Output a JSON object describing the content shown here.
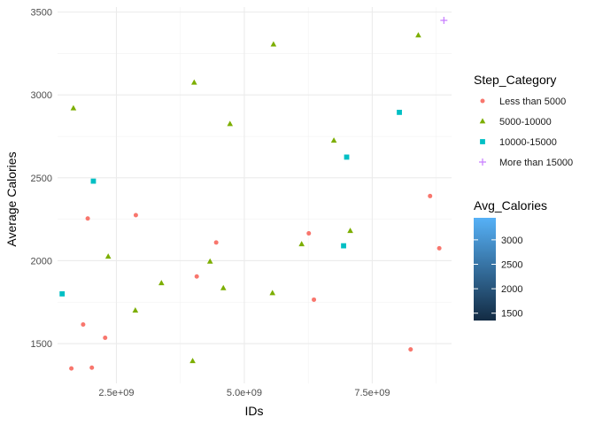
{
  "chart_data": {
    "type": "scatter",
    "xlabel": "IDs",
    "ylabel": "Average Calories",
    "xlim": [
      1350000000.0,
      9050000000.0
    ],
    "ylim": [
      1260,
      3530
    ],
    "x_ticks": [
      {
        "value": 2500000000.0,
        "label": "2.5e+09"
      },
      {
        "value": 5000000000.0,
        "label": "5.0e+09"
      },
      {
        "value": 7500000000.0,
        "label": "7.5e+09"
      }
    ],
    "y_ticks": [
      {
        "value": 1500,
        "label": "1500"
      },
      {
        "value": 2000,
        "label": "2000"
      },
      {
        "value": 2500,
        "label": "2500"
      },
      {
        "value": 3000,
        "label": "3000"
      },
      {
        "value": 3500,
        "label": "3500"
      }
    ],
    "grid": true,
    "legend_position": "right",
    "color_legend": {
      "title": "Step_Category",
      "entries": [
        {
          "label": "Less than 5000",
          "color": "#F8766D",
          "shape": "circle"
        },
        {
          "label": "5000-10000",
          "color": "#7CAE00",
          "shape": "triangle"
        },
        {
          "label": "10000-15000",
          "color": "#00BFC4",
          "shape": "square"
        },
        {
          "label": "More than 15000",
          "color": "#C77CFF",
          "shape": "plus"
        }
      ]
    },
    "gradient_legend": {
      "title": "Avg_Calories",
      "low_color": "#132B43",
      "high_color": "#56B1F7",
      "range": [
        1350,
        3450
      ],
      "breaks": [
        {
          "value": 1500,
          "label": "1500"
        },
        {
          "value": 2000,
          "label": "2000"
        },
        {
          "value": 2500,
          "label": "2500"
        },
        {
          "value": 3000,
          "label": "3000"
        }
      ]
    },
    "series": [
      {
        "name": "Less than 5000",
        "points": [
          {
            "x": 1620000000.0,
            "y": 1350
          },
          {
            "x": 2020000000.0,
            "y": 1355
          },
          {
            "x": 1850000000.0,
            "y": 1615
          },
          {
            "x": 2280000000.0,
            "y": 1535
          },
          {
            "x": 1940000000.0,
            "y": 2255
          },
          {
            "x": 2880000000.0,
            "y": 2275
          },
          {
            "x": 4070000000.0,
            "y": 1905
          },
          {
            "x": 4450000000.0,
            "y": 2110
          },
          {
            "x": 6260000000.0,
            "y": 2165
          },
          {
            "x": 6360000000.0,
            "y": 1765
          },
          {
            "x": 8250000000.0,
            "y": 1465
          },
          {
            "x": 8630000000.0,
            "y": 2390
          },
          {
            "x": 8810000000.0,
            "y": 2075
          }
        ]
      },
      {
        "name": "5000-10000",
        "points": [
          {
            "x": 1660000000.0,
            "y": 2920
          },
          {
            "x": 2340000000.0,
            "y": 2025
          },
          {
            "x": 2870000000.0,
            "y": 1700
          },
          {
            "x": 3380000000.0,
            "y": 1865
          },
          {
            "x": 3990000000.0,
            "y": 1395
          },
          {
            "x": 4020000000.0,
            "y": 3075
          },
          {
            "x": 4330000000.0,
            "y": 1995
          },
          {
            "x": 4590000000.0,
            "y": 1835
          },
          {
            "x": 4720000000.0,
            "y": 2825
          },
          {
            "x": 5550000000.0,
            "y": 1805
          },
          {
            "x": 5570000000.0,
            "y": 3305
          },
          {
            "x": 6120000000.0,
            "y": 2100
          },
          {
            "x": 6750000000.0,
            "y": 2725
          },
          {
            "x": 7070000000.0,
            "y": 2180
          },
          {
            "x": 8400000000.0,
            "y": 3360
          }
        ]
      },
      {
        "name": "10000-15000",
        "points": [
          {
            "x": 1440000000.0,
            "y": 1800
          },
          {
            "x": 2050000000.0,
            "y": 2480
          },
          {
            "x": 6940000000.0,
            "y": 2090
          },
          {
            "x": 7000000000.0,
            "y": 2625
          },
          {
            "x": 8030000000.0,
            "y": 2895
          }
        ]
      },
      {
        "name": "More than 15000",
        "points": [
          {
            "x": 8900000000.0,
            "y": 3450
          }
        ]
      }
    ]
  }
}
